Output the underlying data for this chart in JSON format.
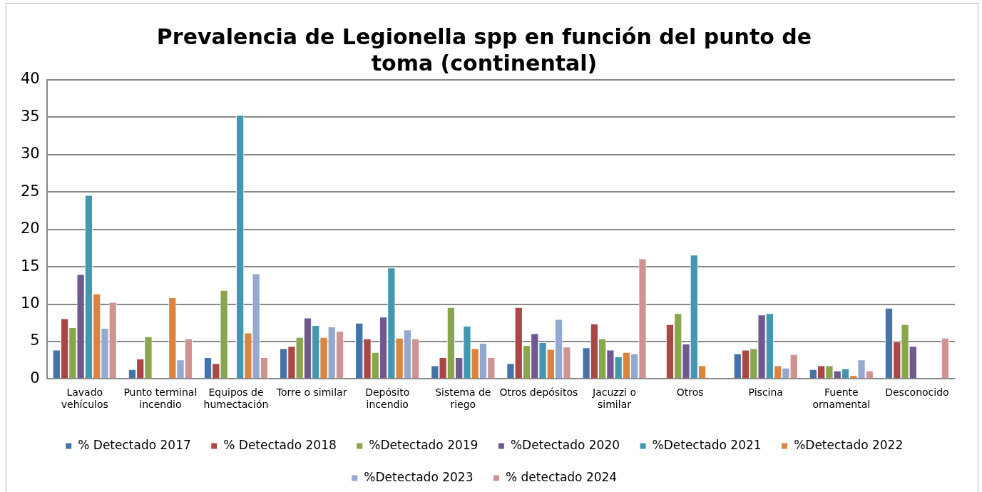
{
  "chart_data": {
    "type": "bar",
    "title": "Prevalencia de Legionella spp en función del punto de toma (continental)",
    "categories": [
      "Lavado vehículos",
      "Punto terminal incendio",
      "Equipos de humectación",
      "Torre o similar",
      "Depósito incendio",
      "Sistema de riego",
      "Otros depósitos",
      "Jacuzzi o similar",
      "Otros",
      "Piscina",
      "Fuente ornamental",
      "Desconocido"
    ],
    "series": [
      {
        "name": "% Detectado 2017",
        "color": "#4572a7",
        "values": [
          3.9,
          1.3,
          2.9,
          4.1,
          7.5,
          1.8,
          2.1,
          4.2,
          null,
          3.4,
          1.3,
          9.5
        ]
      },
      {
        "name": "% Detectado 2018",
        "color": "#aa4643",
        "values": [
          8.1,
          2.7,
          2.1,
          4.4,
          5.4,
          2.9,
          9.6,
          7.4,
          7.3,
          3.9,
          1.8,
          5.0
        ]
      },
      {
        "name": "%Detectado 2019",
        "color": "#89a54e",
        "values": [
          6.9,
          5.7,
          11.9,
          5.6,
          3.6,
          9.6,
          4.5,
          5.4,
          8.8,
          4.1,
          1.8,
          7.3
        ]
      },
      {
        "name": "%Detectado 2020",
        "color": "#71588f",
        "values": [
          14.0,
          null,
          null,
          8.2,
          8.3,
          2.9,
          6.1,
          3.9,
          4.7,
          8.6,
          1.1,
          4.4
        ]
      },
      {
        "name": "%Detectado 2021",
        "color": "#4198af",
        "values": [
          24.6,
          null,
          35.3,
          7.2,
          14.9,
          7.1,
          4.9,
          3.0,
          16.6,
          8.8,
          1.4,
          null
        ]
      },
      {
        "name": "%Detectado 2022",
        "color": "#db843d",
        "values": [
          11.4,
          10.9,
          6.2,
          5.6,
          5.5,
          4.1,
          4.0,
          3.6,
          1.8,
          1.8,
          0.5,
          null
        ]
      },
      {
        "name": "%Detectado 2023",
        "color": "#93a9cf",
        "values": [
          6.8,
          2.6,
          14.1,
          7.0,
          6.6,
          4.8,
          8.0,
          3.4,
          null,
          1.5,
          2.6,
          null
        ]
      },
      {
        "name": "% detectado 2024",
        "color": "#d19392",
        "values": [
          10.3,
          5.4,
          2.9,
          6.4,
          5.4,
          2.9,
          4.3,
          16.1,
          null,
          3.3,
          1.1,
          5.5
        ]
      }
    ],
    "ylim": [
      0,
      40
    ],
    "yticks": [
      0,
      5,
      10,
      15,
      20,
      25,
      30,
      35,
      40
    ],
    "grid": "y",
    "legend": "bottom"
  }
}
